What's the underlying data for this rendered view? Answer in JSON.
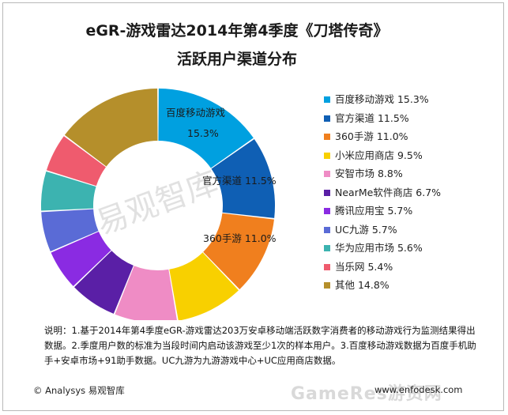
{
  "title_line1": "eGR-游戏雷达2014年第4季度《刀塔传奇》",
  "title_line2": "活跃用户渠道分布",
  "chart_data": {
    "type": "pie",
    "subtype": "donut",
    "slices": [
      {
        "label": "百度移动游戏",
        "value": 15.3,
        "color": "#00a0e0",
        "data_label": "百度移动游戏",
        "data_label_value": "15.3%"
      },
      {
        "label": "官方渠道",
        "value": 11.5,
        "color": "#0f5fb4",
        "data_label": "官方渠道 11.5%"
      },
      {
        "label": "360手游",
        "value": 11.0,
        "color": "#f07f1e",
        "data_label": "360手游 11.0%"
      },
      {
        "label": "小米应用商店",
        "value": 9.5,
        "color": "#f8d000"
      },
      {
        "label": "安智市场",
        "value": 8.8,
        "color": "#ef8cc5"
      },
      {
        "label": "NearMe软件商店",
        "value": 6.7,
        "color": "#5a1fa6"
      },
      {
        "label": "腾讯应用宝",
        "value": 5.7,
        "color": "#8a2be2"
      },
      {
        "label": "UC九游",
        "value": 5.7,
        "color": "#5a6bd6"
      },
      {
        "label": "华为应用市场",
        "value": 5.6,
        "color": "#3cb3b0"
      },
      {
        "label": "当乐网",
        "value": 5.4,
        "color": "#ef5b6e"
      },
      {
        "label": "其他",
        "value": 14.8,
        "color": "#b58f2b"
      }
    ],
    "legend_position": "right",
    "legend": [
      "百度移动游戏  15.3%",
      "官方渠道 11.5%",
      "360手游  11.0%",
      "小米应用商店  9.5%",
      "安智市场 8.8%",
      "NearMe软件商店 6.7%",
      "腾讯应用宝  5.7%",
      "UC九游  5.7%",
      "华为应用市场  5.6%",
      "当乐网  5.4%",
      "其他 14.8%"
    ],
    "watermark": "易观智库"
  },
  "note": "说明：1.基于2014年第4季度eGR-游戏雷达203万安卓移动端活跃数字消费者的移动游戏行为监测结果得出数据。2.季度用户数的标准为当段时间内启动该游戏至少1次的样本用户。3.百度移动游戏数据为百度手机助手+安卓市场+91助手数据。UC九游为九游游戏中心+UC应用商店数据。",
  "footer_left": "© Analysys 易观智库",
  "footer_right": "www.enfodesk.com",
  "corner_watermark": "GameRes游资网"
}
